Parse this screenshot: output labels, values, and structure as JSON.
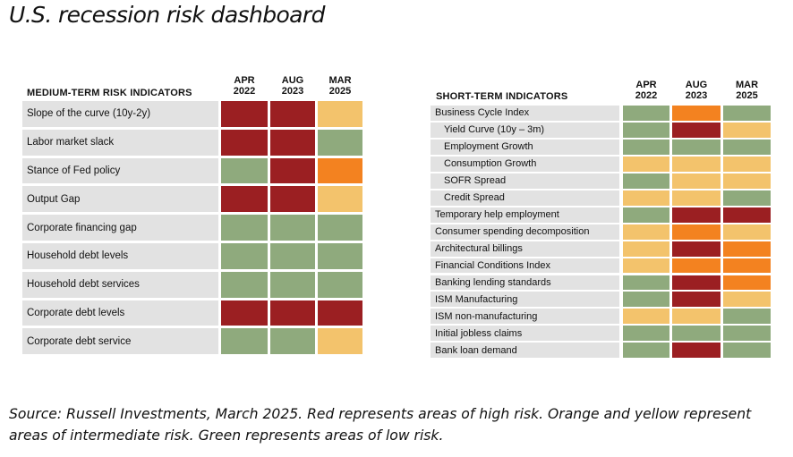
{
  "title": "U.S. recession risk dashboard",
  "colors": {
    "red": "#9b1f22",
    "orange": "#f38220",
    "yellow": "#f3c36c",
    "green": "#8faa7d",
    "label_bg": "#e2e2e2"
  },
  "chart_data": [
    {
      "type": "table",
      "title": "MEDIUM-TERM RISK INDICATORS",
      "columns": [
        {
          "month": "APR",
          "year": "2022"
        },
        {
          "month": "AUG",
          "year": "2023"
        },
        {
          "month": "MAR",
          "year": "2025"
        }
      ],
      "rows": [
        {
          "label": "Slope of the curve (10y-2y)",
          "values": [
            "red",
            "red",
            "yellow"
          ]
        },
        {
          "label": "Labor market slack",
          "values": [
            "red",
            "red",
            "green"
          ]
        },
        {
          "label": "Stance of Fed policy",
          "values": [
            "green",
            "red",
            "orange"
          ]
        },
        {
          "label": "Output Gap",
          "values": [
            "red",
            "red",
            "yellow"
          ]
        },
        {
          "label": "Corporate financing gap",
          "values": [
            "green",
            "green",
            "green"
          ]
        },
        {
          "label": "Household debt levels",
          "values": [
            "green",
            "green",
            "green"
          ]
        },
        {
          "label": "Household debt services",
          "values": [
            "green",
            "green",
            "green"
          ]
        },
        {
          "label": "Corporate debt levels",
          "values": [
            "red",
            "red",
            "red"
          ]
        },
        {
          "label": "Corporate debt service",
          "values": [
            "green",
            "green",
            "yellow"
          ]
        }
      ]
    },
    {
      "type": "table",
      "title": "SHORT-TERM INDICATORS",
      "columns": [
        {
          "month": "APR",
          "year": "2022"
        },
        {
          "month": "AUG",
          "year": "2023"
        },
        {
          "month": "MAR",
          "year": "2025"
        }
      ],
      "rows": [
        {
          "label": "Business Cycle Index",
          "sub": false,
          "values": [
            "green",
            "orange",
            "green"
          ]
        },
        {
          "label": "Yield Curve (10y – 3m)",
          "sub": true,
          "values": [
            "green",
            "red",
            "yellow"
          ]
        },
        {
          "label": "Employment Growth",
          "sub": true,
          "values": [
            "green",
            "green",
            "green"
          ]
        },
        {
          "label": "Consumption Growth",
          "sub": true,
          "values": [
            "yellow",
            "yellow",
            "yellow"
          ]
        },
        {
          "label": "SOFR Spread",
          "sub": true,
          "values": [
            "green",
            "yellow",
            "yellow"
          ]
        },
        {
          "label": "Credit Spread",
          "sub": true,
          "values": [
            "yellow",
            "yellow",
            "green"
          ]
        },
        {
          "label": "Temporary help employment",
          "sub": false,
          "values": [
            "green",
            "red",
            "red"
          ]
        },
        {
          "label": "Consumer spending decomposition",
          "sub": false,
          "values": [
            "yellow",
            "orange",
            "yellow"
          ]
        },
        {
          "label": "Architectural billings",
          "sub": false,
          "values": [
            "yellow",
            "red",
            "orange"
          ]
        },
        {
          "label": "Financial Conditions Index",
          "sub": false,
          "values": [
            "yellow",
            "orange",
            "orange"
          ]
        },
        {
          "label": "Banking lending standards",
          "sub": false,
          "values": [
            "green",
            "red",
            "orange"
          ]
        },
        {
          "label": "ISM Manufacturing",
          "sub": false,
          "values": [
            "green",
            "red",
            "yellow"
          ]
        },
        {
          "label": "ISM non-manufacturing",
          "sub": false,
          "values": [
            "yellow",
            "yellow",
            "green"
          ]
        },
        {
          "label": "Initial jobless claims",
          "sub": false,
          "values": [
            "green",
            "green",
            "green"
          ]
        },
        {
          "label": "Bank loan demand",
          "sub": false,
          "values": [
            "green",
            "red",
            "green"
          ]
        }
      ]
    }
  ],
  "source": "Source: Russell Investments, March 2025. Red represents areas of high risk. Orange and yellow represent areas of intermediate risk. Green represents areas of low risk."
}
